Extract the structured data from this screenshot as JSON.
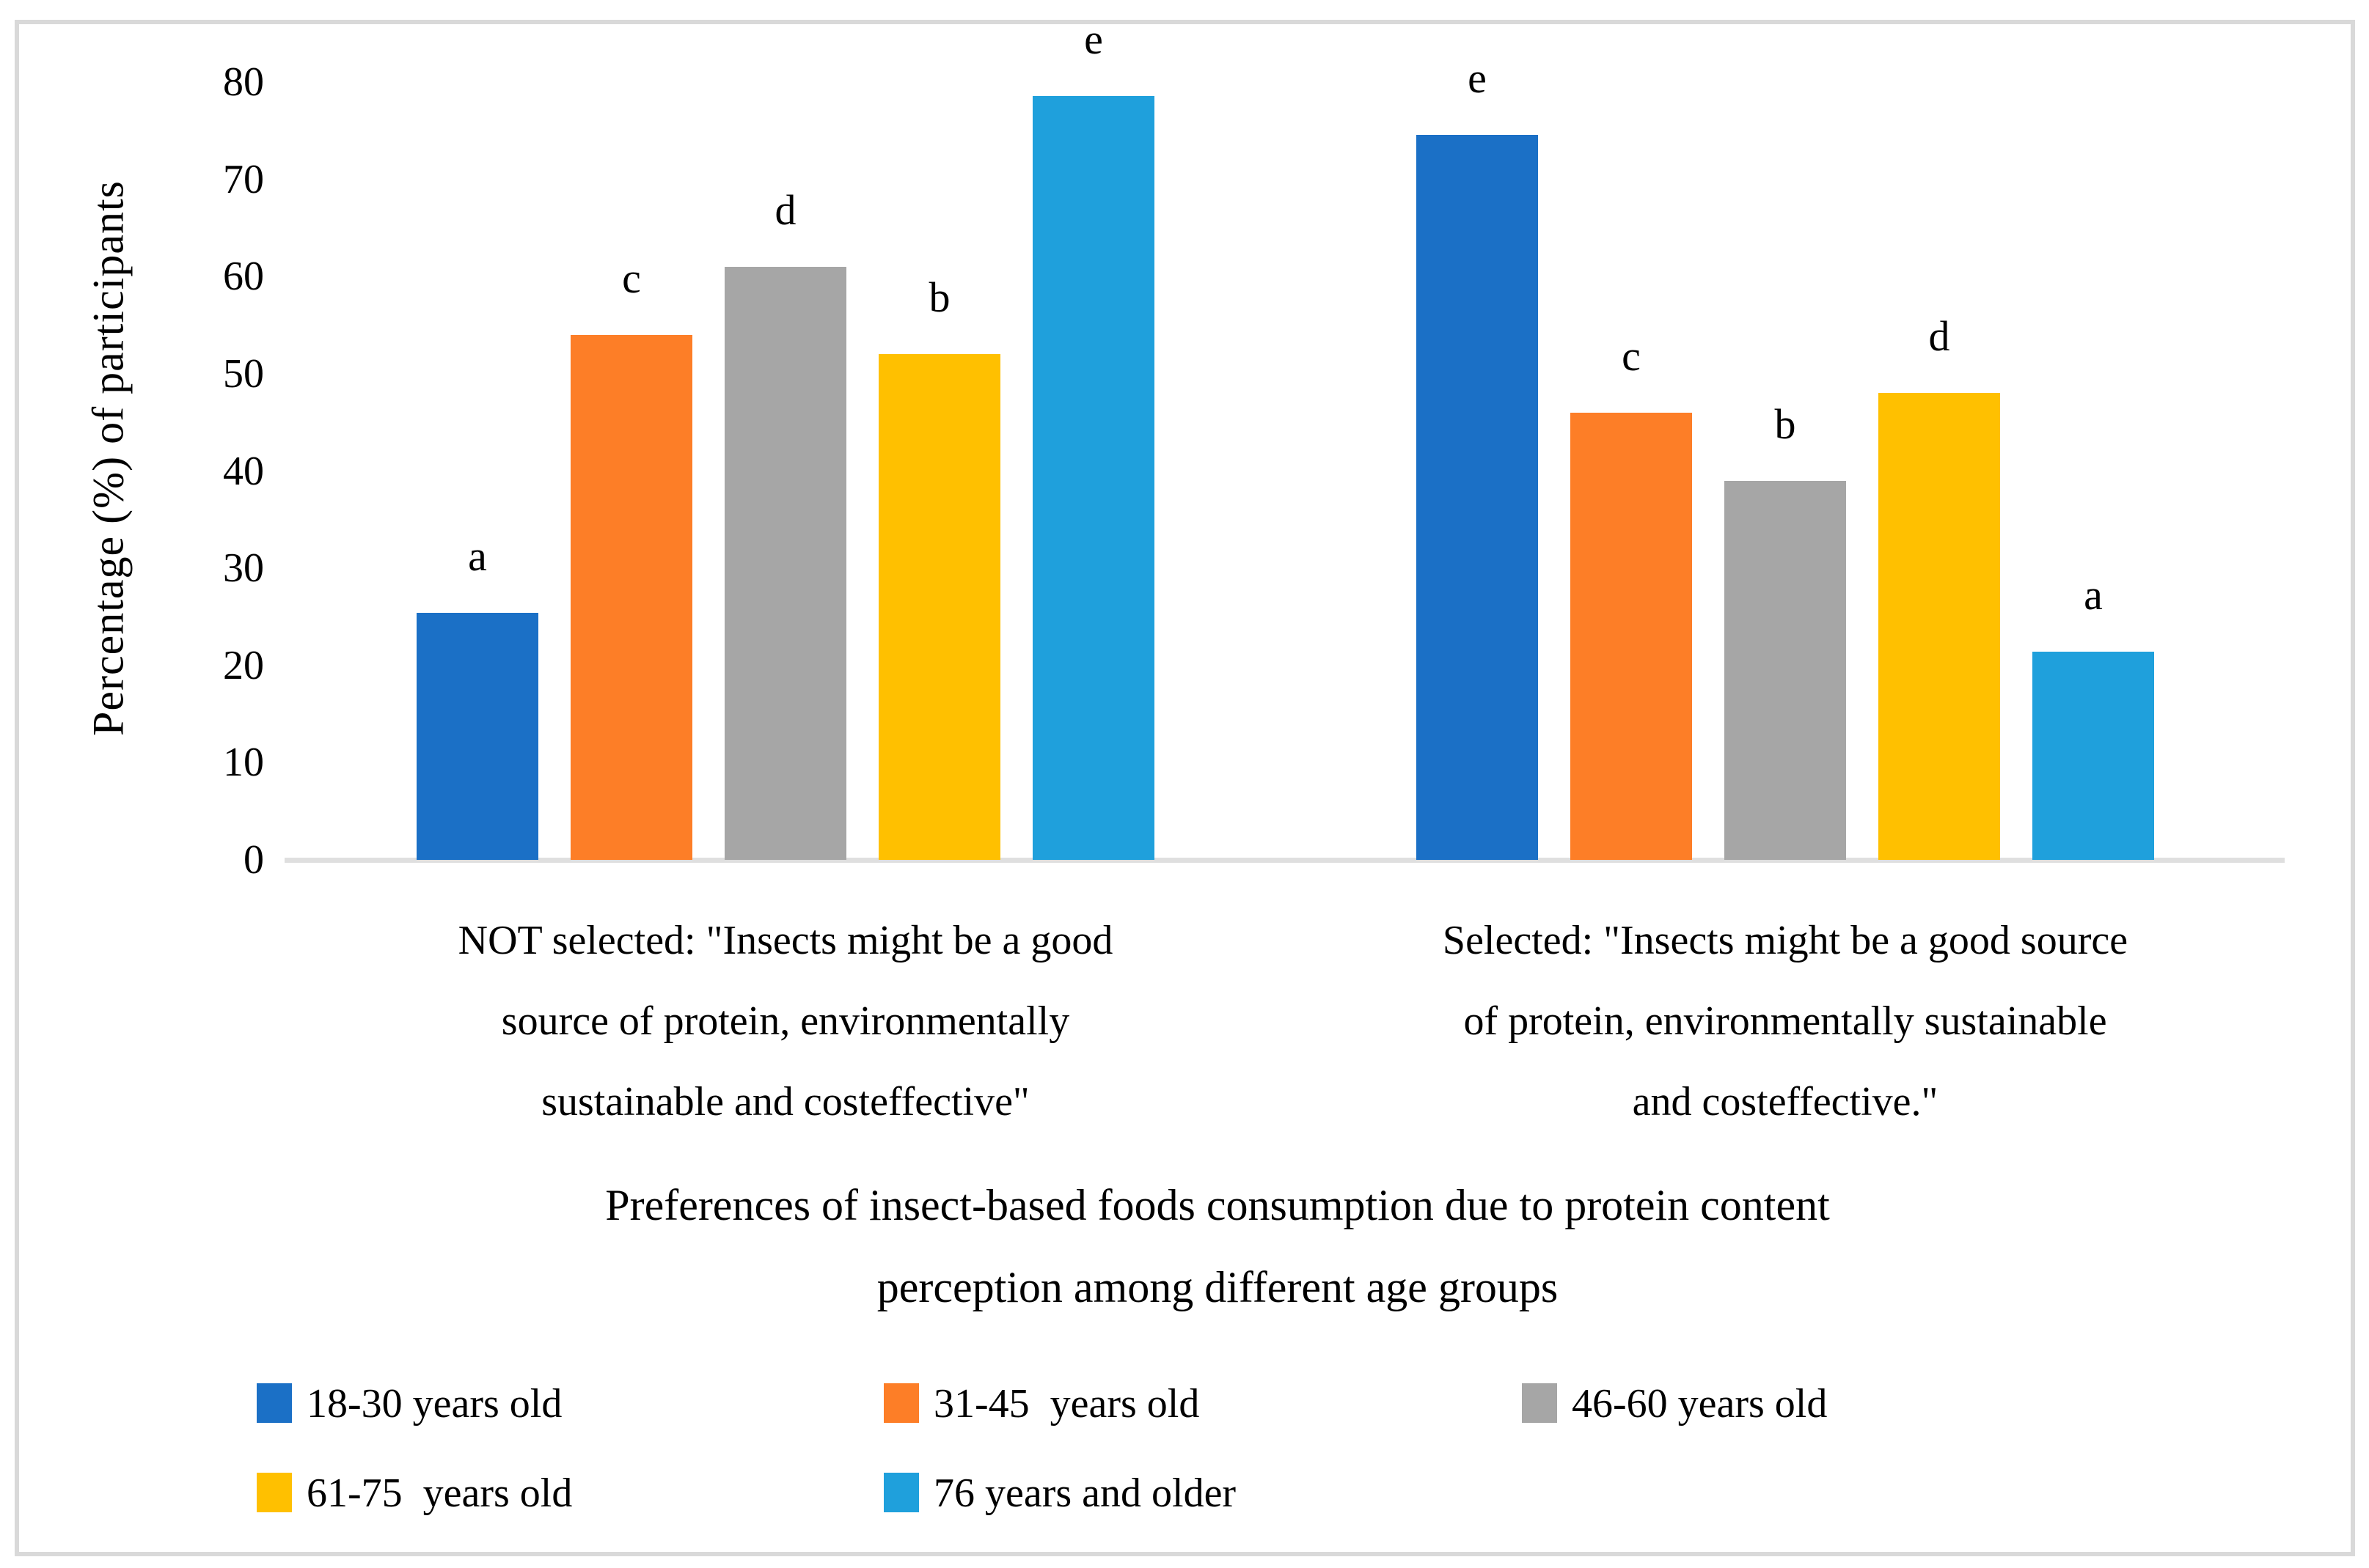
{
  "figure": {
    "background": "#FFFFFF",
    "border_color": "#D9D9D9",
    "axis_line_color": "#DFDFDF",
    "text_color": "#000000"
  },
  "chart_data": {
    "type": "bar",
    "title_lines": [
      "Preferences of insect-based foods consumption due to protein content",
      "perception among different age groups"
    ],
    "xlabel": "",
    "ylabel": "Percentage (%) of participants",
    "ylim": [
      0,
      80
    ],
    "yticks": [
      "0",
      "10",
      "20",
      "30",
      "40",
      "50",
      "60",
      "70",
      "80"
    ],
    "grid": false,
    "legend_position": "bottom",
    "categories": [
      {
        "lines": [
          "NOT selected: \"Insects might be a good",
          "source of protein, environmentally",
          "sustainable and costeffective\""
        ]
      },
      {
        "lines": [
          "Selected: \"Insects might be a good source",
          "of protein, environmentally sustainable",
          "and costeffective.\""
        ]
      }
    ],
    "series": [
      {
        "name": "18-30 years old",
        "color": "#1B70C6",
        "values": [
          25.4,
          74.6
        ],
        "letters": [
          "a",
          "e"
        ]
      },
      {
        "name": "31-45  years old",
        "color": "#FD7E27",
        "values": [
          54,
          46
        ],
        "letters": [
          "c",
          "c"
        ]
      },
      {
        "name": "46-60 years old",
        "color": "#A6A6A6",
        "values": [
          61,
          39
        ],
        "letters": [
          "d",
          "b"
        ]
      },
      {
        "name": "61-75  years old",
        "color": "#FFC000",
        "values": [
          52,
          48
        ],
        "letters": [
          "b",
          "d"
        ]
      },
      {
        "name": "76 years and older",
        "color": "#1FA0DC",
        "values": [
          78.6,
          21.4
        ],
        "letters": [
          "e",
          "a"
        ]
      }
    ]
  }
}
